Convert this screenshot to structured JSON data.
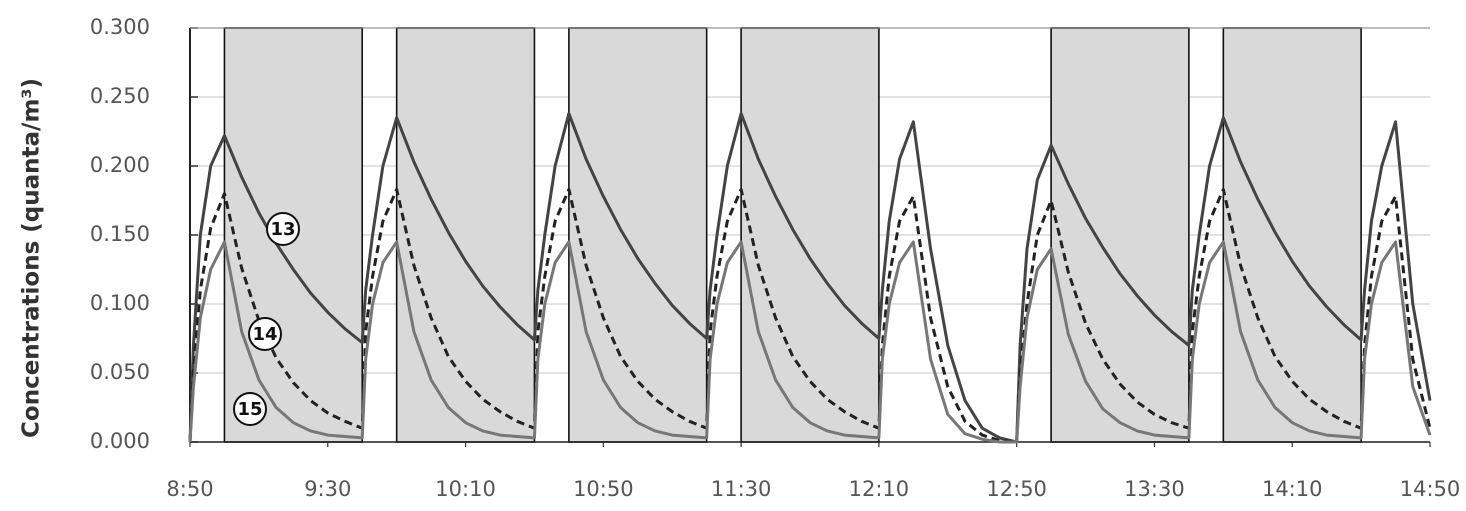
{
  "chart_data": {
    "type": "line",
    "y_label": "Concentrations (quanta/m³)",
    "xlim": [
      530,
      890
    ],
    "xticks": [
      {
        "value": 530,
        "label": "8:50"
      },
      {
        "value": 570,
        "label": "9:30"
      },
      {
        "value": 610,
        "label": "10:10"
      },
      {
        "value": 650,
        "label": "10:50"
      },
      {
        "value": 690,
        "label": "11:30"
      },
      {
        "value": 730,
        "label": "12:10"
      },
      {
        "value": 770,
        "label": "12:50"
      },
      {
        "value": 810,
        "label": "13:30"
      },
      {
        "value": 850,
        "label": "14:10"
      },
      {
        "value": 890,
        "label": "14:50"
      }
    ],
    "ylim": [
      0,
      0.3
    ],
    "yticks": [
      {
        "value": 0,
        "label": "0.000"
      },
      {
        "value": 0.05,
        "label": "0.050"
      },
      {
        "value": 0.1,
        "label": "0.100"
      },
      {
        "value": 0.15,
        "label": "0.150"
      },
      {
        "value": 0.2,
        "label": "0.200"
      },
      {
        "value": 0.25,
        "label": "0.250"
      },
      {
        "value": 0.3,
        "label": "0.300"
      }
    ],
    "grid": true,
    "shaded_color": "#d9d9d9",
    "shaded_periods": [
      [
        540,
        580
      ],
      [
        590,
        630
      ],
      [
        640,
        680
      ],
      [
        690,
        730
      ],
      [
        780,
        820
      ],
      [
        830,
        870
      ]
    ],
    "x": [
      530,
      531,
      533,
      536,
      540,
      545,
      550,
      555,
      560,
      565,
      570,
      575,
      580,
      581,
      583,
      586,
      590,
      595,
      600,
      605,
      610,
      615,
      620,
      625,
      630,
      631,
      633,
      636,
      640,
      645,
      650,
      655,
      660,
      665,
      670,
      675,
      680,
      681,
      683,
      686,
      690,
      695,
      700,
      705,
      710,
      715,
      720,
      725,
      730,
      731,
      733,
      736,
      740,
      745,
      750,
      755,
      760,
      765,
      770,
      771,
      773,
      776,
      780,
      785,
      790,
      795,
      800,
      805,
      810,
      815,
      820,
      821,
      823,
      826,
      830,
      835,
      840,
      845,
      850,
      855,
      860,
      865,
      870,
      871,
      873,
      876,
      880,
      885,
      890
    ],
    "series": [
      {
        "name": "13",
        "color": "#444444",
        "dash": false,
        "values": [
          0,
          0.07,
          0.15,
          0.2,
          0.222,
          0.192,
          0.166,
          0.144,
          0.125,
          0.108,
          0.094,
          0.082,
          0.072,
          0.11,
          0.15,
          0.2,
          0.235,
          0.203,
          0.176,
          0.152,
          0.131,
          0.113,
          0.098,
          0.085,
          0.074,
          0.11,
          0.15,
          0.2,
          0.238,
          0.205,
          0.178,
          0.154,
          0.133,
          0.115,
          0.099,
          0.086,
          0.075,
          0.11,
          0.15,
          0.2,
          0.238,
          0.205,
          0.178,
          0.154,
          0.133,
          0.115,
          0.099,
          0.086,
          0.075,
          0.11,
          0.16,
          0.205,
          0.232,
          0.14,
          0.07,
          0.03,
          0.01,
          0.003,
          0,
          0.07,
          0.14,
          0.19,
          0.215,
          0.187,
          0.162,
          0.141,
          0.122,
          0.106,
          0.092,
          0.08,
          0.07,
          0.11,
          0.15,
          0.2,
          0.235,
          0.203,
          0.176,
          0.152,
          0.131,
          0.113,
          0.098,
          0.085,
          0.074,
          0.11,
          0.16,
          0.2,
          0.232,
          0.1,
          0.03
        ]
      },
      {
        "name": "14",
        "color": "#222222",
        "dash": true,
        "values": [
          0,
          0.05,
          0.11,
          0.155,
          0.18,
          0.126,
          0.088,
          0.061,
          0.043,
          0.03,
          0.021,
          0.015,
          0.01,
          0.08,
          0.12,
          0.16,
          0.183,
          0.128,
          0.09,
          0.062,
          0.044,
          0.031,
          0.022,
          0.015,
          0.01,
          0.08,
          0.12,
          0.16,
          0.183,
          0.128,
          0.09,
          0.062,
          0.044,
          0.031,
          0.022,
          0.015,
          0.01,
          0.08,
          0.12,
          0.16,
          0.183,
          0.128,
          0.09,
          0.062,
          0.044,
          0.031,
          0.022,
          0.015,
          0.01,
          0.07,
          0.12,
          0.16,
          0.178,
          0.09,
          0.04,
          0.015,
          0.005,
          0.001,
          0,
          0.05,
          0.1,
          0.15,
          0.175,
          0.123,
          0.086,
          0.06,
          0.042,
          0.029,
          0.02,
          0.014,
          0.01,
          0.08,
          0.12,
          0.16,
          0.183,
          0.128,
          0.09,
          0.062,
          0.044,
          0.031,
          0.022,
          0.015,
          0.01,
          0.07,
          0.12,
          0.16,
          0.178,
          0.06,
          0.01
        ]
      },
      {
        "name": "15",
        "color": "#777777",
        "dash": false,
        "values": [
          0,
          0.04,
          0.09,
          0.125,
          0.145,
          0.08,
          0.045,
          0.025,
          0.014,
          0.008,
          0.005,
          0.004,
          0.003,
          0.06,
          0.1,
          0.13,
          0.145,
          0.08,
          0.045,
          0.025,
          0.014,
          0.008,
          0.005,
          0.004,
          0.003,
          0.06,
          0.1,
          0.13,
          0.145,
          0.08,
          0.045,
          0.025,
          0.014,
          0.008,
          0.005,
          0.004,
          0.003,
          0.06,
          0.1,
          0.13,
          0.145,
          0.08,
          0.045,
          0.025,
          0.014,
          0.008,
          0.005,
          0.004,
          0.003,
          0.06,
          0.1,
          0.13,
          0.145,
          0.06,
          0.02,
          0.006,
          0.002,
          0,
          0,
          0.04,
          0.09,
          0.125,
          0.14,
          0.078,
          0.044,
          0.024,
          0.014,
          0.008,
          0.005,
          0.004,
          0.003,
          0.06,
          0.1,
          0.13,
          0.145,
          0.08,
          0.045,
          0.025,
          0.014,
          0.008,
          0.005,
          0.004,
          0.003,
          0.06,
          0.1,
          0.13,
          0.145,
          0.04,
          0.005
        ]
      }
    ]
  }
}
